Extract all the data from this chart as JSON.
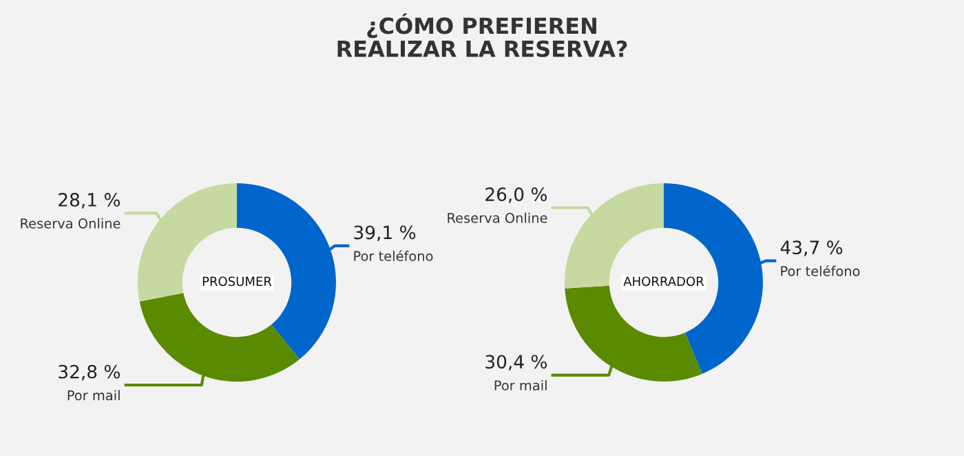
{
  "chart_data": [
    {
      "type": "donut",
      "title": "¿CÓMO PREFIEREN\nREALIZAR LA RESERVA?",
      "annotations": [
        "PROSUMER"
      ],
      "categories": [
        "Por teléfono",
        "Por mail",
        "Reserva Online"
      ],
      "values": [
        39.1,
        32.8,
        28.1
      ],
      "value_labels": [
        "39,1 %",
        "32,8 %",
        "28,1 %"
      ],
      "colors": [
        "#0066cc",
        "#5a8a00",
        "#c5d9a0"
      ]
    },
    {
      "type": "donut",
      "annotations": [
        "AHORRADOR"
      ],
      "categories": [
        "Por teléfono",
        "Por mail",
        "Reserva Online"
      ],
      "values": [
        43.7,
        30.4,
        26.0
      ],
      "value_labels": [
        "43,7 %",
        "30,4 %",
        "26,0 %"
      ],
      "colors": [
        "#0066cc",
        "#5a8a00",
        "#c5d9a0"
      ]
    }
  ]
}
